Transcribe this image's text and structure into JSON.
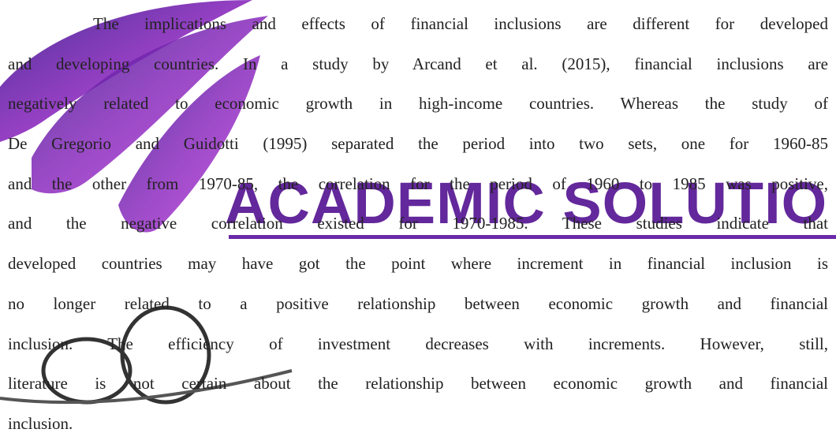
{
  "paragraph": {
    "lines": [
      "The implications and effects of financial inclusions are different for developed",
      "and developing countries. In a study by Arcand et al. (2015), financial inclusions are",
      "negatively related to economic growth in high-income countries. Whereas the study of",
      "De Gregorio and Guidotti (1995) separated the period into two sets, one for 1960-85",
      "and the other from 1970-85, the correlation for the period of 1960 to 1985 was positive,",
      "and the negative correlation existed for 1970-1985. These studies indicate that",
      "developed countries may have got the point where increment in financial inclusion is",
      "no longer related to a positive relationship between economic growth and financial",
      "inclusion. The efficiency of investment decreases with increments. However, still,",
      "literature is not certain about the relationship between economic growth and financial",
      "inclusion."
    ]
  },
  "watermark": {
    "text": "ACADEMIC SOLUTIO"
  }
}
